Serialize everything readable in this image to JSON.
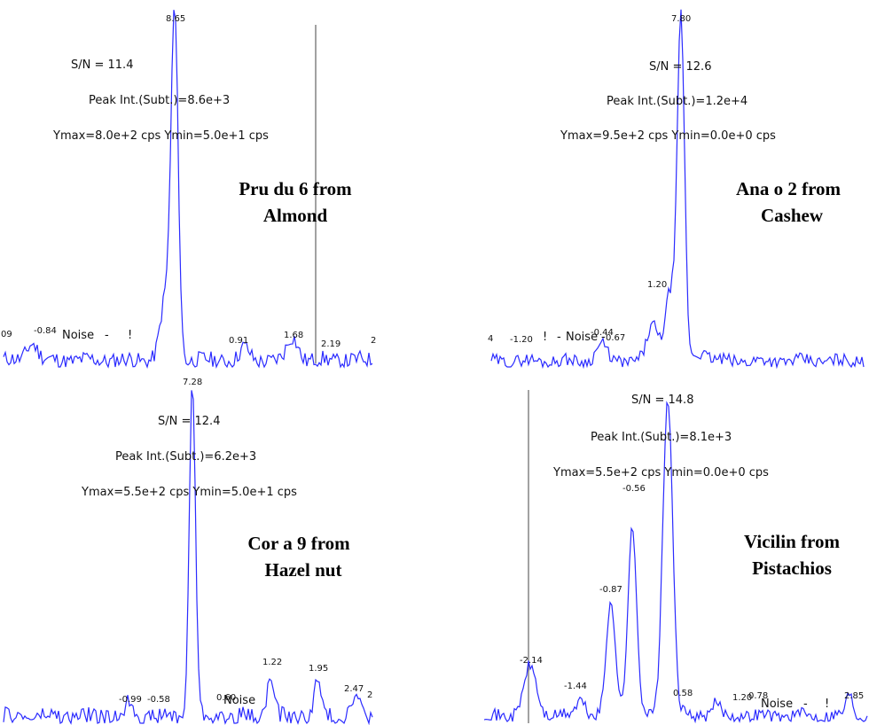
{
  "chart_data": [
    {
      "type": "line",
      "title_lines": [
        "Pru du 6 from",
        "Almond"
      ],
      "sn": "S/N = 11.4",
      "peak_int": "Peak Int.(Subt.)=8.6e+3",
      "yrange": "Ymax=8.0e+2 cps  Ymin=5.0e+1 cps",
      "noise_label": "Noise",
      "peak_labels": [
        "8.65",
        "-0.84",
        "0.91",
        "1.68",
        "2.19"
      ],
      "edge_labels": [
        "09",
        "2"
      ],
      "color": "#2b2bff"
    },
    {
      "type": "line",
      "title_lines": [
        "Ana o 2 from",
        "Cashew"
      ],
      "sn": "S/N = 12.6",
      "peak_int": "Peak Int.(Subt.)=1.2e+4",
      "yrange": "Ymax=9.5e+2 cps  Ymin=0.0e+0 cps",
      "noise_label": "Noise",
      "peak_labels": [
        "7.80",
        "1.20",
        "-1.20",
        "-0.44",
        "0.67"
      ],
      "edge_labels": [
        "4"
      ],
      "color": "#2b2bff"
    },
    {
      "type": "line",
      "title_lines": [
        "Cor a 9 from",
        "Hazel nut"
      ],
      "sn": "S/N = 12.4",
      "peak_int": "Peak Int.(Subt.)=6.2e+3",
      "yrange": "Ymax=5.5e+2 cps  Ymin=5.0e+1 cps",
      "noise_label": "Noise",
      "peak_labels": [
        "7.28",
        "-0.99",
        "-0.58",
        "0.60",
        "1.22",
        "1.95",
        "2.47"
      ],
      "edge_labels": [
        "2"
      ],
      "color": "#2b2bff"
    },
    {
      "type": "line",
      "title_lines": [
        "Vicilin from",
        "Pistachios"
      ],
      "sn": "S/N = 14.8",
      "peak_int": "Peak Int.(Subt.)=8.1e+3",
      "yrange": "Ymax=5.5e+2 cps  Ymin=0.0e+0 cps",
      "noise_label": "Noise",
      "peak_labels": [
        "-0.56",
        "-0.87",
        "-2.14",
        "-1.44",
        "0.58",
        "1.20",
        "0.78",
        "2.85"
      ],
      "edge_labels": [],
      "color": "#2b2bff"
    }
  ]
}
